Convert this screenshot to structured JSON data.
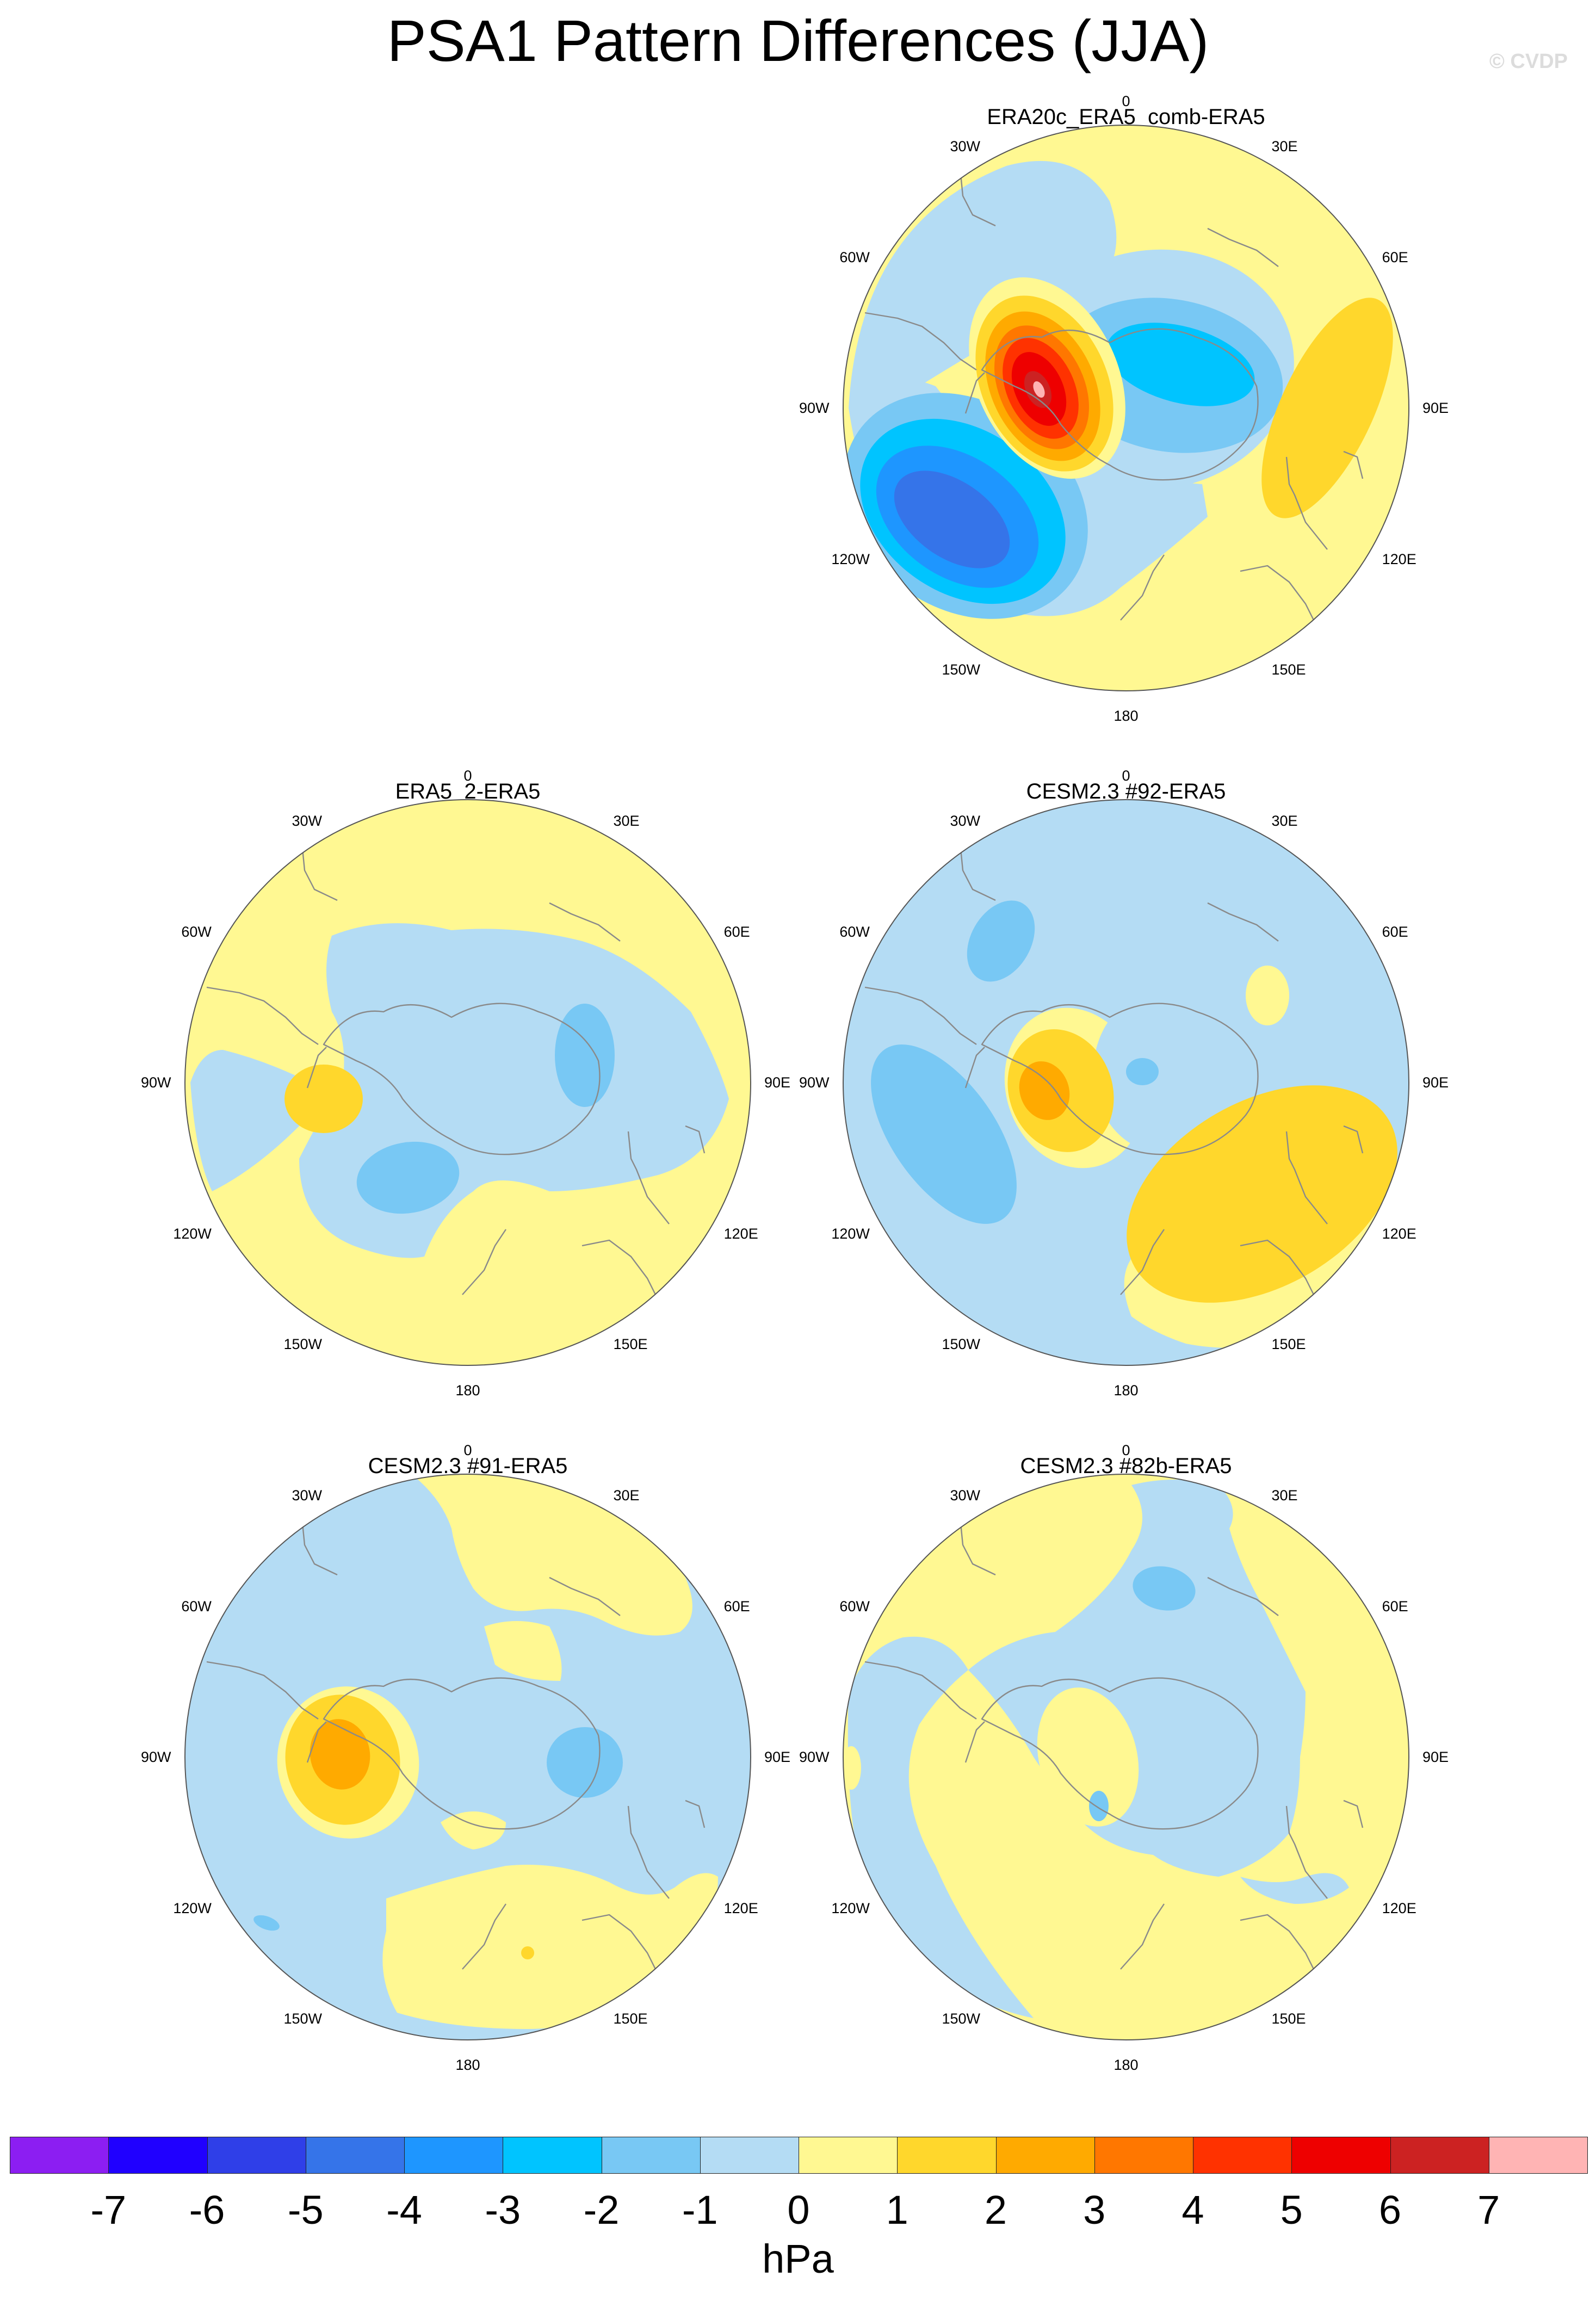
{
  "title": "PSA1 Pattern Differences (JJA)",
  "watermark": "© CVDP",
  "lon_labels": [
    "0",
    "30E",
    "60E",
    "90E",
    "120E",
    "150E",
    "180",
    "150W",
    "120W",
    "90W",
    "60W",
    "30W"
  ],
  "panels": [
    {
      "title": "ERA20c_ERA5_comb-ERA5",
      "max_anomaly_hPa": 7,
      "min_anomaly_hPa": -5
    },
    {
      "title": "ERA5_2-ERA5",
      "max_anomaly_hPa": 2,
      "min_anomaly_hPa": -2
    },
    {
      "title": "CESM2.3 #92-ERA5",
      "max_anomaly_hPa": 3,
      "min_anomaly_hPa": -2
    },
    {
      "title": "CESM2.3 #91-ERA5",
      "max_anomaly_hPa": 3,
      "min_anomaly_hPa": -2
    },
    {
      "title": "CESM2.3 #82b-ERA5",
      "max_anomaly_hPa": 1,
      "min_anomaly_hPa": -2
    }
  ],
  "colorbar": {
    "colors": [
      "#8c1ef2",
      "#2000ff",
      "#2f3fe8",
      "#3574e9",
      "#1e96ff",
      "#00c4ff",
      "#78c8f4",
      "#b4dcf4",
      "#fff892",
      "#ffd72c",
      "#ffaa00",
      "#ff7700",
      "#ff3200",
      "#ee0000",
      "#cc2222",
      "#ffb4b4"
    ],
    "tick_labels": [
      "-7",
      "-6",
      "-5",
      "-4",
      "-3",
      "-2",
      "-1",
      "0",
      "1",
      "2",
      "3",
      "4",
      "5",
      "6",
      "7"
    ],
    "units": "hPa"
  },
  "style": {
    "land_outline": "#8a8a8a",
    "map_border": "#555555"
  }
}
